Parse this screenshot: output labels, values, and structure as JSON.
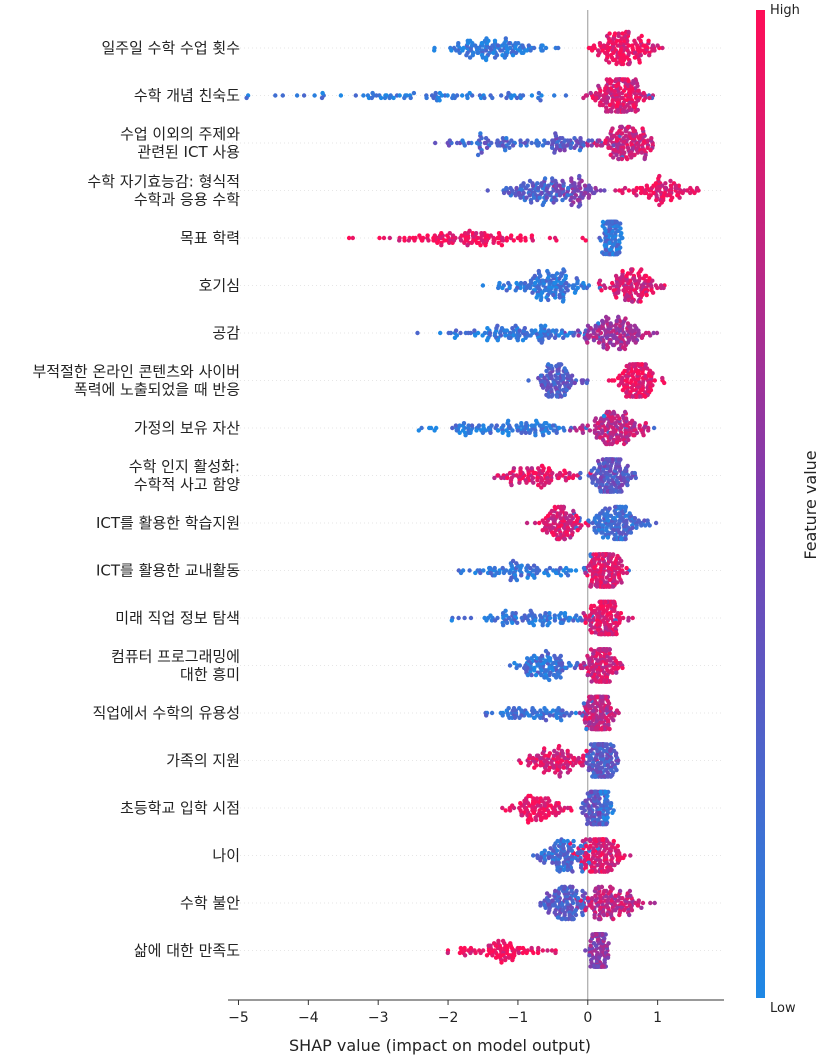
{
  "chart_data": {
    "type": "scatter",
    "subtype": "shap-beeswarm",
    "title": "",
    "xlabel": "SHAP value (impact on model output)",
    "xlim": [
      -5.15,
      1.95
    ],
    "xticks": [
      -5,
      -4,
      -3,
      -2,
      -1,
      0,
      1
    ],
    "xtick_labels": [
      "−5",
      "−4",
      "−3",
      "−2",
      "−1",
      "0",
      "1"
    ],
    "zero_line": 0,
    "colorbar": {
      "label": "Feature value",
      "high_label": "High",
      "low_label": "Low",
      "high_color": "#ff0d57",
      "low_color": "#1e88e5"
    },
    "features": [
      {
        "label": "일주일 수학 수업 횟수",
        "min": -2.2,
        "max": 1.15,
        "clusters": [
          {
            "center": -1.35,
            "spread": 0.35,
            "weight": 0.48,
            "feature_value": 0.08
          },
          {
            "center": 0.55,
            "spread": 0.22,
            "weight": 0.52,
            "feature_value": 0.92
          }
        ]
      },
      {
        "label": "수학 개념 친숙도",
        "min": -4.9,
        "max": 0.95,
        "clusters": [
          {
            "center": -2.2,
            "spread": 1.2,
            "weight": 0.3,
            "feature_value": 0.1
          },
          {
            "center": 0.45,
            "spread": 0.18,
            "weight": 0.7,
            "feature_value": 0.85
          }
        ]
      },
      {
        "label": "수업 이외의 주제와 관련된 ICT 사용",
        "min": -3.1,
        "max": 0.95,
        "clusters": [
          {
            "center": -1.0,
            "spread": 0.7,
            "weight": 0.35,
            "feature_value": 0.25
          },
          {
            "center": -0.2,
            "spread": 0.2,
            "weight": 0.15,
            "feature_value": 0.35
          },
          {
            "center": 0.55,
            "spread": 0.2,
            "weight": 0.5,
            "feature_value": 0.8
          }
        ]
      },
      {
        "label": "수학 자기효능감: 형식적 수학과 응용 수학",
        "min": -1.45,
        "max": 1.7,
        "clusters": [
          {
            "center": -0.7,
            "spread": 0.25,
            "weight": 0.35,
            "feature_value": 0.25
          },
          {
            "center": -0.2,
            "spread": 0.2,
            "weight": 0.3,
            "feature_value": 0.5
          },
          {
            "center": 1.05,
            "spread": 0.25,
            "weight": 0.35,
            "feature_value": 0.9
          }
        ]
      },
      {
        "label": "목표 학력",
        "min": -3.5,
        "max": 0.5,
        "clusters": [
          {
            "center": -1.7,
            "spread": 0.5,
            "weight": 0.45,
            "feature_value": 0.95
          },
          {
            "center": 0.35,
            "spread": 0.07,
            "weight": 0.55,
            "feature_value": 0.15
          }
        ]
      },
      {
        "label": "호기심",
        "min": -1.55,
        "max": 1.1,
        "clusters": [
          {
            "center": -0.6,
            "spread": 0.3,
            "weight": 0.5,
            "feature_value": 0.1
          },
          {
            "center": 0.6,
            "spread": 0.2,
            "weight": 0.5,
            "feature_value": 0.85
          }
        ]
      },
      {
        "label": "공감",
        "min": -2.5,
        "max": 1.0,
        "clusters": [
          {
            "center": -1.0,
            "spread": 0.55,
            "weight": 0.4,
            "feature_value": 0.12
          },
          {
            "center": 0.4,
            "spread": 0.22,
            "weight": 0.6,
            "feature_value": 0.65
          }
        ]
      },
      {
        "label": "부적절한 온라인 콘텐츠와 사이버 폭력에 노출되었을 때 반응",
        "min": -0.95,
        "max": 1.1,
        "clusters": [
          {
            "center": -0.45,
            "spread": 0.15,
            "weight": 0.45,
            "feature_value": 0.3
          },
          {
            "center": 0.7,
            "spread": 0.15,
            "weight": 0.55,
            "feature_value": 0.9
          }
        ]
      },
      {
        "label": "가정의 보유 자산",
        "min": -2.5,
        "max": 1.0,
        "clusters": [
          {
            "center": -1.2,
            "spread": 0.6,
            "weight": 0.4,
            "feature_value": 0.1
          },
          {
            "center": 0.4,
            "spread": 0.22,
            "weight": 0.6,
            "feature_value": 0.75
          }
        ]
      },
      {
        "label": "수학 인지 활성화: 수학적 사고 함양",
        "min": -1.65,
        "max": 0.95,
        "clusters": [
          {
            "center": -0.7,
            "spread": 0.3,
            "weight": 0.4,
            "feature_value": 0.88
          },
          {
            "center": 0.35,
            "spread": 0.15,
            "weight": 0.6,
            "feature_value": 0.35
          }
        ]
      },
      {
        "label": "ICT를 활용한 학습지원",
        "min": -0.95,
        "max": 1.0,
        "clusters": [
          {
            "center": -0.4,
            "spread": 0.15,
            "weight": 0.45,
            "feature_value": 0.85
          },
          {
            "center": 0.4,
            "spread": 0.22,
            "weight": 0.55,
            "feature_value": 0.2
          }
        ]
      },
      {
        "label": "ICT를 활용한 교내활동",
        "min": -2.2,
        "max": 0.8,
        "clusters": [
          {
            "center": -0.9,
            "spread": 0.45,
            "weight": 0.35,
            "feature_value": 0.12
          },
          {
            "center": 0.25,
            "spread": 0.12,
            "weight": 0.65,
            "feature_value": 0.85
          }
        ]
      },
      {
        "label": "미래 직업 정보 탐색",
        "min": -1.95,
        "max": 0.7,
        "clusters": [
          {
            "center": -0.85,
            "spread": 0.45,
            "weight": 0.35,
            "feature_value": 0.12
          },
          {
            "center": 0.25,
            "spread": 0.12,
            "weight": 0.65,
            "feature_value": 0.85
          }
        ]
      },
      {
        "label": "컴퓨터 프로그래밍에 대한 흥미",
        "min": -1.15,
        "max": 0.65,
        "clusters": [
          {
            "center": -0.55,
            "spread": 0.22,
            "weight": 0.35,
            "feature_value": 0.15
          },
          {
            "center": 0.2,
            "spread": 0.12,
            "weight": 0.65,
            "feature_value": 0.8
          }
        ]
      },
      {
        "label": "직업에서 수학의 유용성",
        "min": -1.6,
        "max": 0.55,
        "clusters": [
          {
            "center": -0.7,
            "spread": 0.35,
            "weight": 0.35,
            "feature_value": 0.15
          },
          {
            "center": 0.15,
            "spread": 0.1,
            "weight": 0.65,
            "feature_value": 0.75
          }
        ]
      },
      {
        "label": "가족의 지원",
        "min": -1.75,
        "max": 0.45,
        "clusters": [
          {
            "center": -0.45,
            "spread": 0.25,
            "weight": 0.35,
            "feature_value": 0.85
          },
          {
            "center": 0.2,
            "spread": 0.1,
            "weight": 0.65,
            "feature_value": 0.3
          }
        ]
      },
      {
        "label": "초등학교 입학 시점",
        "min": -1.35,
        "max": 0.5,
        "clusters": [
          {
            "center": -0.7,
            "spread": 0.22,
            "weight": 0.35,
            "feature_value": 0.95
          },
          {
            "center": 0.1,
            "spread": 0.08,
            "weight": 0.45,
            "feature_value": 0.35
          },
          {
            "center": 0.25,
            "spread": 0.06,
            "weight": 0.2,
            "feature_value": 0.1
          }
        ]
      },
      {
        "label": "나이",
        "min": -0.9,
        "max": 0.65,
        "clusters": [
          {
            "center": -0.35,
            "spread": 0.2,
            "weight": 0.45,
            "feature_value": 0.2
          },
          {
            "center": 0.2,
            "spread": 0.15,
            "weight": 0.55,
            "feature_value": 0.85
          }
        ]
      },
      {
        "label": "수학 불안",
        "min": -0.7,
        "max": 1.0,
        "clusters": [
          {
            "center": -0.3,
            "spread": 0.15,
            "weight": 0.45,
            "feature_value": 0.3
          },
          {
            "center": 0.3,
            "spread": 0.25,
            "weight": 0.55,
            "feature_value": 0.75
          }
        ]
      },
      {
        "label": "삶에 대한 만족도",
        "min": -2.05,
        "max": 0.45,
        "clusters": [
          {
            "center": -1.3,
            "spread": 0.35,
            "weight": 0.35,
            "feature_value": 0.95
          },
          {
            "center": 0.15,
            "spread": 0.06,
            "weight": 0.65,
            "feature_value": 0.55
          }
        ]
      }
    ]
  }
}
